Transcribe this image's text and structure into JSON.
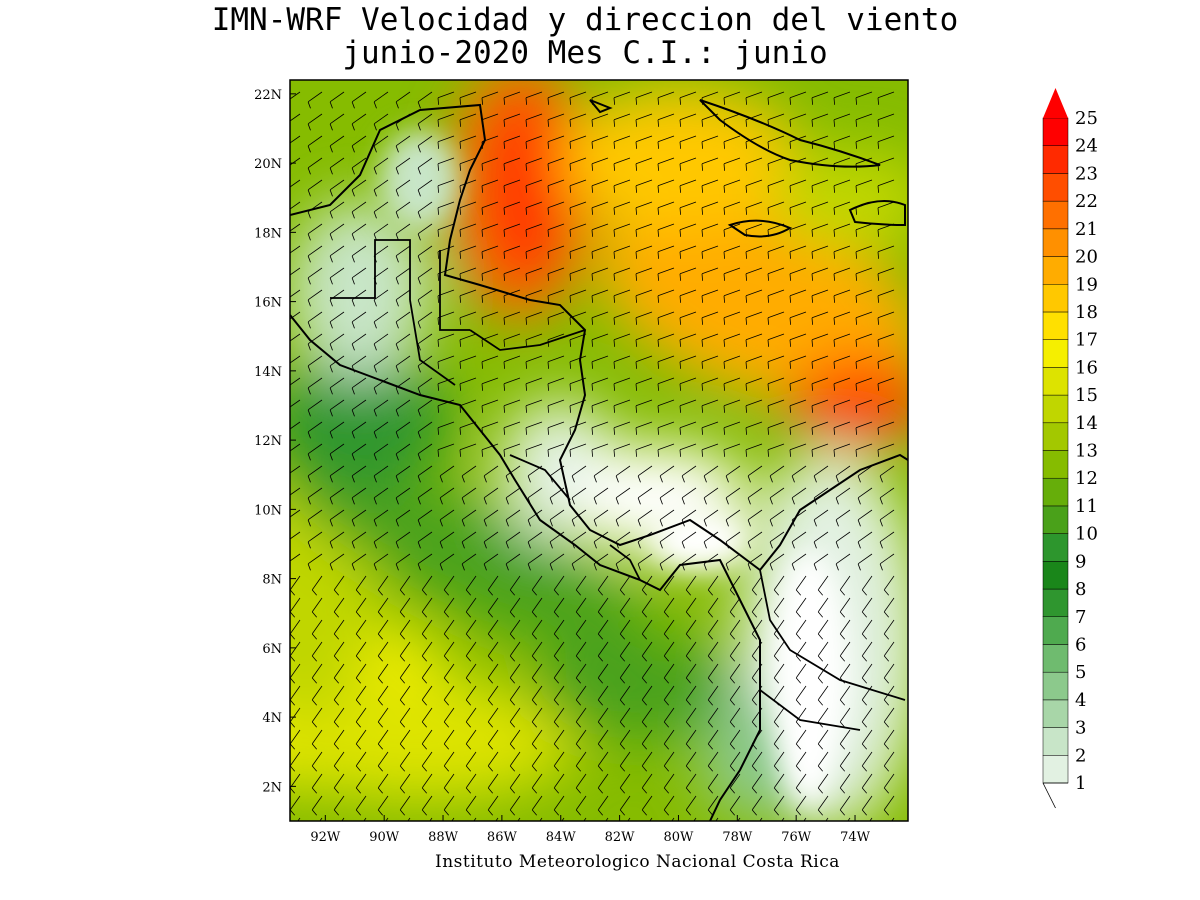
{
  "title": {
    "line1": "IMN-WRF Velocidad y direccion del viento",
    "line2": "junio-2020 Mes C.I.: junio"
  },
  "credit": "Instituto Meteorologico Nacional Costa Rica",
  "map": {
    "lon_range": [
      -93.2,
      -72.2
    ],
    "lat_range": [
      1.0,
      22.4
    ],
    "lon_ticks": [
      "92W",
      "90W",
      "88W",
      "86W",
      "84W",
      "82W",
      "80W",
      "78W",
      "76W",
      "74W"
    ],
    "lon_tick_values": [
      -92,
      -90,
      -88,
      -86,
      -84,
      -82,
      -80,
      -78,
      -76,
      -74
    ],
    "lat_ticks": [
      "2N",
      "4N",
      "6N",
      "8N",
      "10N",
      "12N",
      "14N",
      "16N",
      "18N",
      "20N",
      "22N"
    ],
    "lat_tick_values": [
      2,
      4,
      6,
      8,
      10,
      12,
      14,
      16,
      18,
      20,
      22
    ]
  },
  "colorbar": {
    "labels": [
      "1",
      "2",
      "3",
      "4",
      "5",
      "6",
      "7",
      "8",
      "9",
      "10",
      "11",
      "12",
      "13",
      "14",
      "15",
      "16",
      "17",
      "18",
      "19",
      "20",
      "21",
      "22",
      "23",
      "24",
      "25"
    ],
    "colors": [
      "#ffffff",
      "#e2f1e2",
      "#c8e5c8",
      "#a8d6a8",
      "#8cc98c",
      "#6fbb6f",
      "#4faa4f",
      "#2f962f",
      "#1a861a",
      "#2d962d",
      "#4aa11a",
      "#66ae0a",
      "#86bc00",
      "#a3c800",
      "#c0d600",
      "#dde300",
      "#f5ef00",
      "#ffe000",
      "#ffc800",
      "#ffac00",
      "#ff9000",
      "#ff7000",
      "#ff4e00",
      "#ff2a00",
      "#ff0000"
    ],
    "extend_color": "#ff0000"
  }
}
